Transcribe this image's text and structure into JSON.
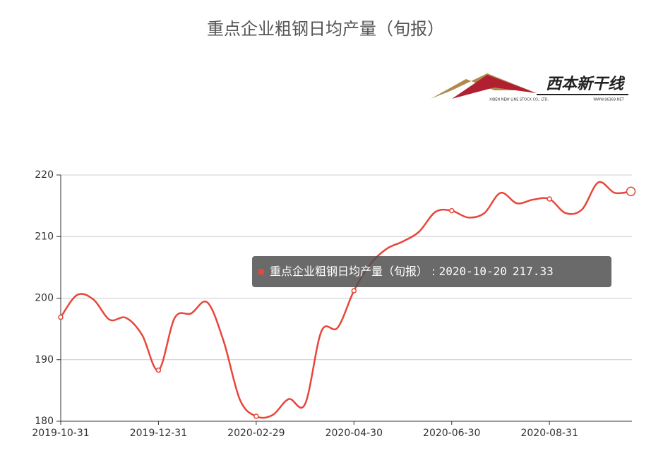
{
  "chart_data": {
    "type": "line",
    "title": "重点企业粗钢日均产量（旬报）",
    "logo": {
      "name": "西本新干线",
      "company": "XIBEN NEW LINE STOCK CO., LTD.",
      "site": "WWW.96369.NET"
    },
    "categories": [
      "2019-10-31",
      null,
      null,
      null,
      null,
      null,
      "2019-12-31",
      null,
      null,
      null,
      null,
      null,
      "2020-02-29",
      null,
      null,
      null,
      null,
      null,
      "2020-04-30",
      null,
      null,
      null,
      null,
      null,
      "2020-06-30",
      null,
      null,
      null,
      null,
      null,
      "2020-08-31",
      null,
      null,
      null,
      null,
      "2020-10-20"
    ],
    "series": [
      {
        "name": "重点企业粗钢日均产量（旬报）",
        "color": "#e8463a",
        "values": [
          196.9,
          200.5,
          199.8,
          196.5,
          196.8,
          194.0,
          188.3,
          196.8,
          197.5,
          199.3,
          193.0,
          183.5,
          180.8,
          181.0,
          183.6,
          182.8,
          194.6,
          195.2,
          201.2,
          205.5,
          208.0,
          209.2,
          210.8,
          214.0,
          214.2,
          213.1,
          213.8,
          217.1,
          215.4,
          216.0,
          216.1,
          213.8,
          214.4,
          218.8,
          217.1,
          217.33
        ]
      }
    ],
    "ylim": [
      180,
      220
    ],
    "yticks": [
      180,
      190,
      200,
      210,
      220
    ],
    "grid": true,
    "tooltip": {
      "separator": " : "
    }
  }
}
